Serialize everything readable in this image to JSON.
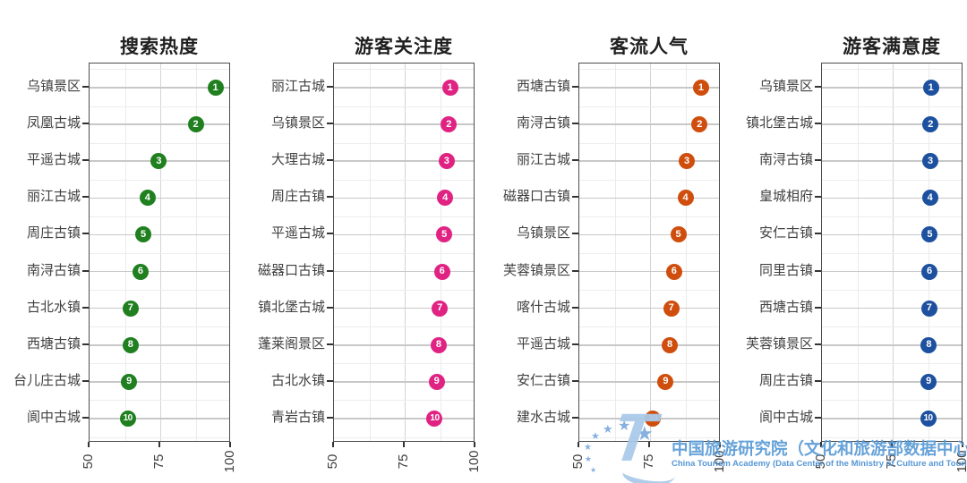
{
  "figure": {
    "background": "#ffffff",
    "watermark": {
      "logo_text": "T",
      "org_cn": "中国旅游研究院（文化和旅游部数据中心）",
      "org_en": "China Tourism Academy (Data Center of the Ministry of Culture and Tourism)",
      "text_color": "#5b9cd6",
      "logo_color": "#a9c9e9",
      "star_color": "#7dabdd"
    }
  },
  "chart_data": [
    {
      "type": "scatter",
      "title": "搜索热度",
      "dot_color": "#208020",
      "xlim": [
        50,
        100
      ],
      "x_ticks": [
        "50",
        "75",
        "100"
      ],
      "x_minor": [
        62.5,
        87.5
      ],
      "grid": true,
      "items": [
        {
          "label": "乌镇景区",
          "rank": 1,
          "value": 94.5
        },
        {
          "label": "凤凰古城",
          "rank": 2,
          "value": 87.5
        },
        {
          "label": "平遥古城",
          "rank": 3,
          "value": 74.5
        },
        {
          "label": "丽江古城",
          "rank": 4,
          "value": 70.5
        },
        {
          "label": "周庄古镇",
          "rank": 5,
          "value": 69
        },
        {
          "label": "南浔古镇",
          "rank": 6,
          "value": 68
        },
        {
          "label": "古北水镇",
          "rank": 7,
          "value": 64.5
        },
        {
          "label": "西塘古镇",
          "rank": 8,
          "value": 64.5
        },
        {
          "label": "台儿庄古城",
          "rank": 9,
          "value": 64
        },
        {
          "label": "阆中古城",
          "rank": 10,
          "value": 63.5
        }
      ]
    },
    {
      "type": "scatter",
      "title": "游客关注度",
      "dot_color": "#e02383",
      "xlim": [
        50,
        100
      ],
      "x_ticks": [
        "50",
        "75",
        "100"
      ],
      "x_minor": [
        62.5,
        87.5
      ],
      "grid": true,
      "items": [
        {
          "label": "丽江古城",
          "rank": 1,
          "value": 91
        },
        {
          "label": "乌镇景区",
          "rank": 2,
          "value": 90.6
        },
        {
          "label": "大理古城",
          "rank": 3,
          "value": 89.8
        },
        {
          "label": "周庄古镇",
          "rank": 4,
          "value": 89.3
        },
        {
          "label": "平遥古城",
          "rank": 5,
          "value": 89
        },
        {
          "label": "磁器口古镇",
          "rank": 6,
          "value": 88.2
        },
        {
          "label": "镇北堡古城",
          "rank": 7,
          "value": 87.4
        },
        {
          "label": "蓬莱阁景区",
          "rank": 8,
          "value": 87
        },
        {
          "label": "古北水镇",
          "rank": 9,
          "value": 86.3
        },
        {
          "label": "青岩古镇",
          "rank": 10,
          "value": 85.6
        }
      ]
    },
    {
      "type": "scatter",
      "title": "客流人气",
      "dot_color": "#cf4e0d",
      "xlim": [
        50,
        100
      ],
      "x_ticks": [
        "50",
        "75",
        "100"
      ],
      "x_minor": [
        62.5,
        87.5
      ],
      "grid": true,
      "items": [
        {
          "label": "西塘古镇",
          "rank": 1,
          "value": 93
        },
        {
          "label": "南浔古镇",
          "rank": 2,
          "value": 92.5
        },
        {
          "label": "丽江古城",
          "rank": 3,
          "value": 88
        },
        {
          "label": "磁器口古镇",
          "rank": 4,
          "value": 87.5
        },
        {
          "label": "乌镇景区",
          "rank": 5,
          "value": 85
        },
        {
          "label": "芙蓉镇景区",
          "rank": 6,
          "value": 83.5
        },
        {
          "label": "喀什古城",
          "rank": 7,
          "value": 82.5
        },
        {
          "label": "平遥古城",
          "rank": 8,
          "value": 82
        },
        {
          "label": "安仁古镇",
          "rank": 9,
          "value": 80.5
        },
        {
          "label": "建水古城",
          "rank": 10,
          "value": 76
        }
      ]
    },
    {
      "type": "scatter",
      "title": "游客满意度",
      "dot_color": "#1d519f",
      "xlim": [
        50,
        100
      ],
      "x_ticks": [
        "50",
        "75",
        "100"
      ],
      "x_minor": [
        62.5,
        87.5
      ],
      "grid": true,
      "items": [
        {
          "label": "乌镇景区",
          "rank": 1,
          "value": 88.5
        },
        {
          "label": "镇北堡古城",
          "rank": 2,
          "value": 88.4
        },
        {
          "label": "南浔古镇",
          "rank": 3,
          "value": 88.3
        },
        {
          "label": "皇城相府",
          "rank": 4,
          "value": 88.2
        },
        {
          "label": "安仁古镇",
          "rank": 5,
          "value": 88.1
        },
        {
          "label": "同里古镇",
          "rank": 6,
          "value": 88
        },
        {
          "label": "西塘古镇",
          "rank": 7,
          "value": 87.9
        },
        {
          "label": "芙蓉镇景区",
          "rank": 8,
          "value": 87.8
        },
        {
          "label": "周庄古镇",
          "rank": 9,
          "value": 87.7
        },
        {
          "label": "阆中古城",
          "rank": 10,
          "value": 87.5
        }
      ]
    }
  ]
}
